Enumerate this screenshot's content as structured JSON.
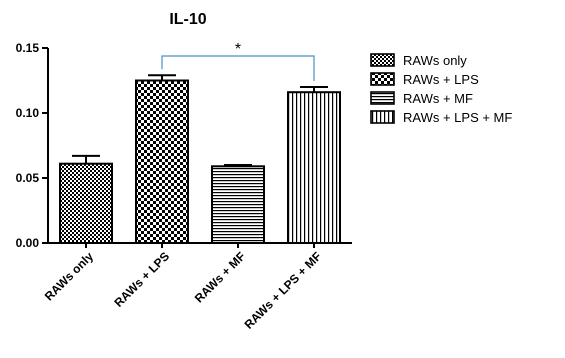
{
  "chart_data": {
    "type": "bar",
    "title": "IL-10",
    "categories": [
      "RAWs only",
      "RAWs + LPS",
      "RAWs + MF",
      "RAWs + LPS + MF"
    ],
    "values": [
      0.061,
      0.125,
      0.059,
      0.116
    ],
    "errors": [
      0.006,
      0.004,
      0.001,
      0.004
    ],
    "ylim": [
      0,
      0.15
    ],
    "yticks": [
      "0.00",
      "0.05",
      "0.10",
      "0.15"
    ],
    "ytick_values": [
      0,
      0.05,
      0.1,
      0.15
    ],
    "patterns": [
      "checker-fine",
      "checker-coarse",
      "horizontal",
      "vertical"
    ],
    "legend": [
      "RAWs only",
      "RAWs + LPS",
      "RAWs + MF",
      "RAWs + LPS + MF"
    ],
    "legend_position": "right",
    "significance": {
      "between": [
        1,
        3
      ],
      "label": "*",
      "color": "#4a90c8"
    },
    "grid": false
  }
}
